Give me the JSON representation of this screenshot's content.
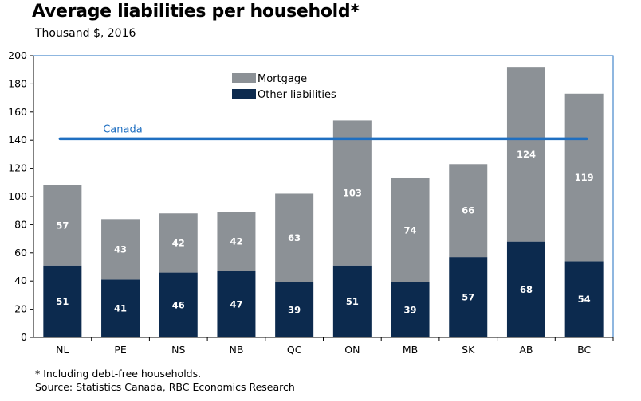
{
  "title": "Average liabilities per household*",
  "subtitle": "Thousand $, 2016",
  "footnotes": [
    "* Including debt-free households.",
    "Source: Statistics Canada, RBC Economics Research"
  ],
  "colors": {
    "mortgage": "#8c9196",
    "other": "#0c2a4e",
    "canada_line": "#1f6fc1",
    "plot_border": "#1f6fc1"
  },
  "chart_data": {
    "type": "bar",
    "stacked": true,
    "categories": [
      "NL",
      "PE",
      "NS",
      "NB",
      "QC",
      "ON",
      "MB",
      "SK",
      "AB",
      "BC"
    ],
    "series": [
      {
        "name": "Other liabilities",
        "values": [
          51,
          41,
          46,
          47,
          39,
          51,
          39,
          57,
          68,
          54
        ]
      },
      {
        "name": "Mortgage",
        "values": [
          57,
          43,
          42,
          42,
          63,
          103,
          74,
          66,
          124,
          119
        ]
      }
    ],
    "reference_line": {
      "label": "Canada",
      "value": 141
    },
    "ylim": [
      0,
      200
    ],
    "yticks": [
      0,
      20,
      40,
      60,
      80,
      100,
      120,
      140,
      160,
      180,
      200
    ],
    "legend_position": "top-center",
    "grid": false
  }
}
